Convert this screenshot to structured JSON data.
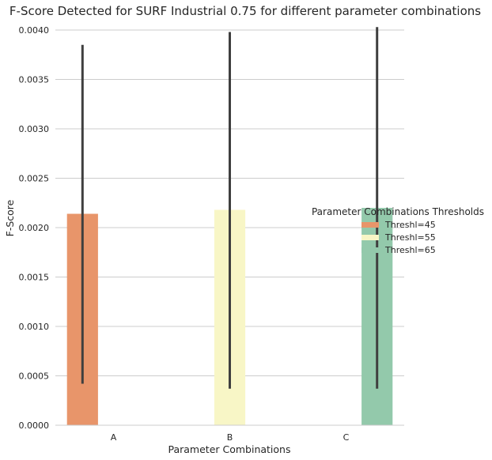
{
  "chart_data": {
    "type": "bar",
    "title": "F-Score Detected for SURF Industrial 0.75 for different parameter combinations",
    "xlabel": "Parameter Combinations",
    "ylabel": "F-Score",
    "categories": [
      "A",
      "B",
      "C"
    ],
    "ylim": [
      0,
      0.004
    ],
    "yticks": [
      "0.0000",
      "0.0005",
      "0.0010",
      "0.0015",
      "0.0020",
      "0.0025",
      "0.0030",
      "0.0035",
      "0.0040"
    ],
    "grid": true,
    "legend": {
      "title": "Parameter Combinations Thresholds",
      "placement": "right"
    },
    "series": [
      {
        "name": "Threshl=45",
        "color": "#e8956a",
        "values": [
          0.00214,
          null,
          null
        ],
        "ci_low": [
          0.00042,
          null,
          null
        ],
        "ci_high": [
          0.00385,
          null,
          null
        ]
      },
      {
        "name": "Threshl=55",
        "color": "#f8f6c6",
        "values": [
          null,
          0.00218,
          null
        ],
        "ci_low": [
          null,
          0.00037,
          null
        ],
        "ci_high": [
          null,
          0.00398,
          null
        ]
      },
      {
        "name": "Threshl=65",
        "color": "#93c9ab",
        "values": [
          null,
          null,
          0.0022
        ],
        "ci_low": [
          null,
          null,
          0.00037
        ],
        "ci_high": [
          null,
          null,
          0.00403
        ]
      }
    ]
  }
}
